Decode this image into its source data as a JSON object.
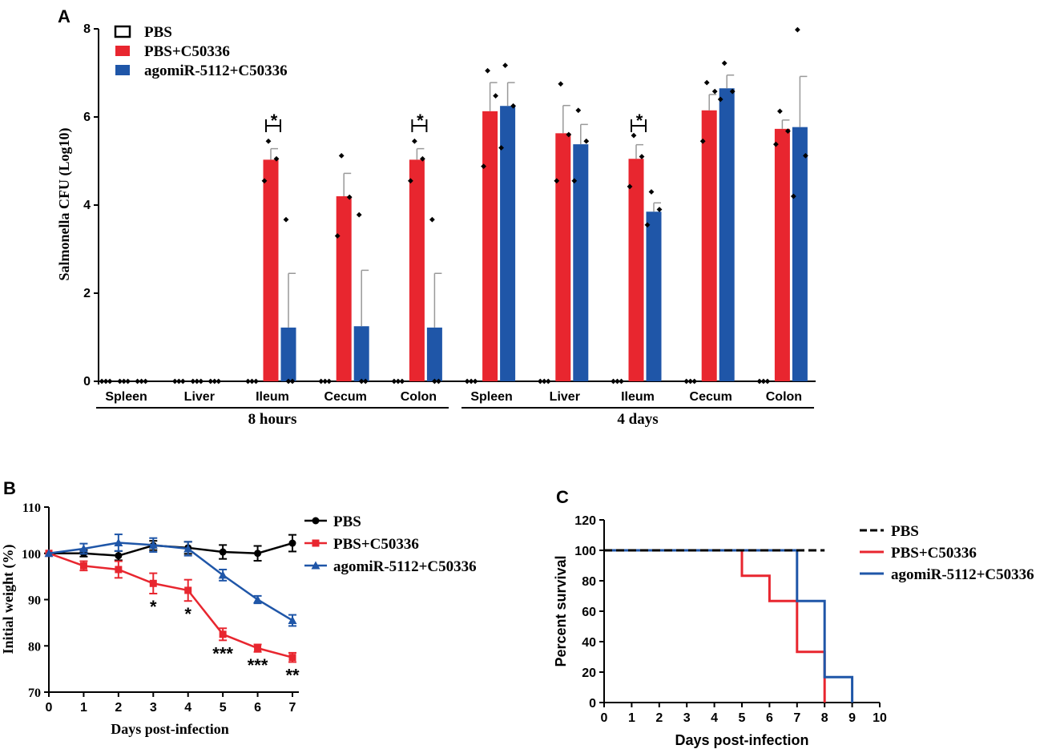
{
  "colors": {
    "pbs": "#000000",
    "pbs_c": "#e8262f",
    "ago": "#1f56a8",
    "err": "#999999"
  },
  "chart_data": [
    {
      "panel": "A",
      "type": "bar",
      "ylabel": "Salmonella CFU (Log10)",
      "ylim": [
        0,
        8
      ],
      "yticks": [
        0,
        2,
        4,
        6,
        8
      ],
      "categories": [
        "Spleen",
        "Liver",
        "Ileum",
        "Cecum",
        "Colon",
        "Spleen",
        "Liver",
        "Ileum",
        "Cecum",
        "Colon"
      ],
      "groups": [
        {
          "label": "8 hours",
          "start": 0,
          "end": 4
        },
        {
          "label": "4 days",
          "start": 5,
          "end": 9
        }
      ],
      "series": [
        {
          "name": "PBS",
          "key": "pbs",
          "values": [
            0,
            0,
            0,
            0,
            0,
            0,
            0,
            0,
            0,
            0
          ],
          "errors": [
            0,
            0,
            0,
            0,
            0,
            0,
            0,
            0,
            0,
            0
          ],
          "points": [
            [
              0,
              0,
              0
            ],
            [
              0,
              0,
              0
            ],
            [
              0,
              0,
              0
            ],
            [
              0,
              0,
              0
            ],
            [
              0,
              0,
              0
            ],
            [
              0,
              0,
              0
            ],
            [
              0,
              0,
              0
            ],
            [
              0,
              0,
              0
            ],
            [
              0,
              0,
              0
            ],
            [
              0,
              0,
              0
            ]
          ]
        },
        {
          "name": "PBS+C50336",
          "key": "pbs_c",
          "values": [
            0,
            0,
            5.03,
            4.2,
            5.03,
            6.13,
            5.63,
            5.05,
            6.15,
            5.73
          ],
          "errors": [
            0,
            0,
            0.25,
            0.52,
            0.25,
            0.65,
            0.63,
            0.32,
            0.36,
            0.2
          ],
          "points": [
            [
              0,
              0,
              0
            ],
            [
              0,
              0,
              0
            ],
            [
              5.45,
              5.05,
              4.55
            ],
            [
              5.12,
              4.18,
              3.3
            ],
            [
              5.45,
              5.05,
              4.55
            ],
            [
              7.05,
              6.48,
              4.88
            ],
            [
              6.75,
              5.6,
              4.55
            ],
            [
              5.58,
              5.1,
              4.42
            ],
            [
              6.78,
              6.58,
              5.45
            ],
            [
              6.13,
              5.68,
              5.38
            ]
          ]
        },
        {
          "name": "agomiR-5112+C50336",
          "key": "ago",
          "values": [
            0,
            0,
            1.22,
            1.25,
            1.22,
            6.25,
            5.38,
            3.85,
            6.65,
            5.77
          ],
          "errors": [
            0,
            0,
            1.23,
            1.27,
            1.23,
            0.53,
            0.45,
            0.2,
            0.3,
            1.15
          ],
          "points": [
            [
              0,
              0,
              0
            ],
            [
              0,
              0,
              0
            ],
            [
              3.67,
              0,
              0
            ],
            [
              3.78,
              0,
              0
            ],
            [
              3.67,
              0,
              0
            ],
            [
              7.17,
              6.25,
              5.3
            ],
            [
              6.15,
              5.45,
              4.55
            ],
            [
              4.3,
              3.9,
              3.55
            ],
            [
              7.22,
              6.58,
              6.4
            ],
            [
              7.98,
              5.12,
              4.2
            ]
          ]
        }
      ],
      "significance": [
        {
          "category": 2,
          "label": "*"
        },
        {
          "category": 4,
          "label": "*"
        },
        {
          "category": 7,
          "label": "*"
        }
      ]
    },
    {
      "panel": "B",
      "type": "line",
      "xlabel": "Days post-infection",
      "ylabel": "Initial weight (%)",
      "x": [
        0,
        1,
        2,
        3,
        4,
        5,
        6,
        7
      ],
      "ylim": [
        70,
        110
      ],
      "yticks": [
        70,
        80,
        90,
        100,
        110
      ],
      "series": [
        {
          "name": "PBS",
          "key": "pbs",
          "marker": "circle",
          "values": [
            100,
            100,
            99.5,
            101.7,
            101.2,
            100.3,
            100,
            102.2
          ],
          "errors": [
            0,
            0.7,
            1.0,
            1.0,
            1.3,
            1.5,
            1.6,
            1.8
          ]
        },
        {
          "name": "PBS+C50336",
          "key": "pbs_c",
          "marker": "square",
          "values": [
            100,
            97.3,
            96.5,
            93.5,
            92.0,
            82.5,
            79.5,
            77.5
          ],
          "errors": [
            0,
            1.0,
            1.8,
            2.2,
            2.3,
            1.3,
            0.8,
            1.0
          ]
        },
        {
          "name": "agomiR-5112+C50336",
          "key": "ago",
          "marker": "triangle",
          "values": [
            100,
            101,
            102.3,
            101.8,
            101,
            95.3,
            90,
            85.5
          ],
          "errors": [
            0,
            1.1,
            1.8,
            1.5,
            1.5,
            1.2,
            0.8,
            1.2
          ]
        }
      ],
      "annotations": [
        {
          "x": 3,
          "label": "*"
        },
        {
          "x": 4,
          "label": "*"
        },
        {
          "x": 5,
          "label": "***"
        },
        {
          "x": 6,
          "label": "***"
        },
        {
          "x": 7,
          "label": "**"
        }
      ]
    },
    {
      "panel": "C",
      "type": "line",
      "xlabel": "Days post-infection",
      "ylabel": "Percent survival",
      "xlim": [
        0,
        10
      ],
      "xticks": [
        0,
        1,
        2,
        3,
        4,
        5,
        6,
        7,
        8,
        9,
        10
      ],
      "ylim": [
        0,
        120
      ],
      "yticks": [
        0,
        20,
        40,
        60,
        80,
        100,
        120
      ],
      "series": [
        {
          "name": "PBS",
          "key": "pbs",
          "dash": true,
          "steps": [
            [
              0,
              100
            ],
            [
              8,
              100
            ]
          ]
        },
        {
          "name": "PBS+C50336",
          "key": "pbs_c",
          "steps": [
            [
              0,
              100
            ],
            [
              5,
              100
            ],
            [
              5,
              83.3
            ],
            [
              6,
              83.3
            ],
            [
              6,
              66.7
            ],
            [
              7,
              66.7
            ],
            [
              7,
              33.3
            ],
            [
              8,
              33.3
            ],
            [
              8,
              0
            ]
          ]
        },
        {
          "name": "agomiR-5112+C50336",
          "key": "ago",
          "steps": [
            [
              0,
              100
            ],
            [
              7,
              100
            ],
            [
              7,
              66.7
            ],
            [
              8,
              66.7
            ],
            [
              8,
              16.7
            ],
            [
              9,
              16.7
            ],
            [
              9,
              0
            ]
          ]
        }
      ]
    }
  ]
}
